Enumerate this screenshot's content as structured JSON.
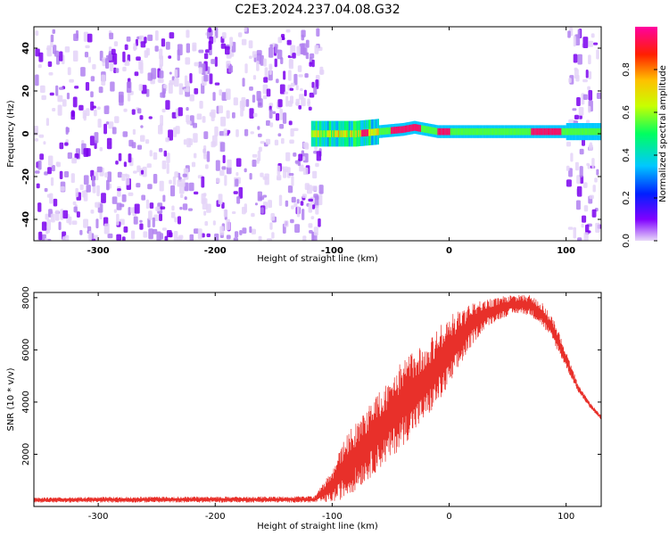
{
  "title": "C2E3.2024.237.04.08.G32",
  "chart_data": [
    {
      "type": "heatmap",
      "xlabel": "Height of straight line (km)",
      "ylabel": "Frequency (Hz)",
      "xlim": [
        -355,
        130
      ],
      "ylim": [
        -50,
        50
      ],
      "xticks": [
        -300,
        -200,
        -100,
        0,
        100
      ],
      "yticks": [
        -40,
        -20,
        0,
        20,
        40
      ],
      "colorbar": {
        "label": "Normalized spectral amplitude",
        "range": [
          0,
          1
        ],
        "ticks": [
          0.0,
          0.2,
          0.4,
          0.6,
          0.8
        ],
        "colormap": [
          "#e8d8f8",
          "#8000ff",
          "#0020ff",
          "#00c8ff",
          "#00ff60",
          "#c8ff00",
          "#ffc000",
          "#ff2000",
          "#ff00a0"
        ]
      },
      "noise_regions": [
        {
          "x_range": [
            -355,
            -110
          ],
          "level": 0.15
        },
        {
          "x_range": [
            100,
            127
          ],
          "level": 0.15
        }
      ],
      "signal_band": {
        "x_range": [
          -118,
          130
        ],
        "center_hz": [
          [
            -118,
            0
          ],
          [
            -100,
            0
          ],
          [
            -80,
            0
          ],
          [
            -60,
            1
          ],
          [
            -40,
            2
          ],
          [
            -30,
            3
          ],
          [
            -20,
            2
          ],
          [
            -10,
            1
          ],
          [
            0,
            1
          ],
          [
            20,
            1
          ],
          [
            40,
            1
          ],
          [
            60,
            1
          ],
          [
            80,
            1
          ],
          [
            100,
            1
          ],
          [
            130,
            1
          ]
        ],
        "peak_amplitude_segments": [
          [
            -75,
            -70
          ],
          [
            -50,
            -25
          ],
          [
            -10,
            0
          ],
          [
            70,
            95
          ]
        ]
      },
      "grid": false
    },
    {
      "type": "line",
      "xlabel": "Height of straight line (km)",
      "ylabel": "SNR (10 * v/v)",
      "xlim": [
        -355,
        130
      ],
      "ylim": [
        0,
        8200
      ],
      "xticks": [
        -300,
        -200,
        -100,
        0,
        100
      ],
      "yticks": [
        2000,
        4000,
        6000,
        8000
      ],
      "color": "#e8302a",
      "envelope": {
        "x": [
          -355,
          -250,
          -150,
          -115,
          -100,
          -90,
          -80,
          -70,
          -60,
          -50,
          -40,
          -30,
          -20,
          -10,
          0,
          10,
          20,
          30,
          40,
          50,
          60,
          70,
          80,
          90,
          100,
          110,
          120,
          130
        ],
        "y_low": [
          150,
          150,
          150,
          150,
          150,
          300,
          600,
          1000,
          1400,
          1800,
          2300,
          2800,
          3300,
          3900,
          4500,
          5400,
          6200,
          6800,
          7100,
          7300,
          7400,
          7300,
          6900,
          6200,
          5300,
          4400,
          3800,
          3300
        ],
        "y_high": [
          350,
          380,
          380,
          400,
          1400,
          2600,
          3200,
          3800,
          4400,
          5000,
          5600,
          6000,
          6300,
          6800,
          7300,
          7600,
          7800,
          7900,
          8000,
          8100,
          8100,
          8100,
          7800,
          7100,
          6000,
          4700,
          4000,
          3500
        ]
      },
      "grid": false
    }
  ]
}
